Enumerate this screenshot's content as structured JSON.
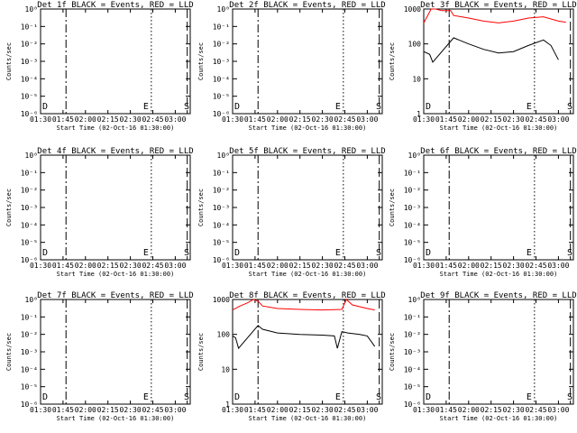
{
  "colors": {
    "events": "#000000",
    "lld": "#ff0000",
    "background": "#ffffff"
  },
  "common": {
    "xlabel": "Start Time (02-Oct-16 01:30:00)",
    "ylabel": "Counts/sec",
    "x_ticks": [
      "01:30",
      "01:45",
      "02:00",
      "02:15",
      "02:30",
      "02:45",
      "03:00"
    ],
    "x_range": [
      "01:30",
      "03:10"
    ],
    "y_ticks_small": [
      "10⁰",
      "10⁻¹",
      "10⁻²",
      "10⁻³",
      "10⁻⁴",
      "10⁻⁵",
      "10⁻⁶"
    ],
    "y_ticks_large": [
      "1",
      "10",
      "100",
      "1000"
    ],
    "marker_lines": [
      {
        "time": "01:47",
        "style": "dash-dot"
      },
      {
        "time": "02:44",
        "style": "dotted"
      },
      {
        "time": "03:08",
        "style": "long-dash"
      }
    ],
    "marker_labels": [
      "D",
      "E",
      "S"
    ]
  },
  "chart_data": [
    {
      "type": "line",
      "title": "Det 1f BLACK = Events, RED = LLD",
      "scale": "small",
      "series": []
    },
    {
      "type": "line",
      "title": "Det 2f BLACK = Events, RED = LLD",
      "scale": "small",
      "series": []
    },
    {
      "type": "line",
      "title": "Det 3f BLACK = Events, RED = LLD",
      "scale": "large",
      "ylim": [
        1,
        1000
      ],
      "series": [
        {
          "color": "red",
          "x": [
            "01:30",
            "01:35",
            "01:38",
            "01:42",
            "01:48",
            "01:50",
            "02:00",
            "02:10",
            "02:20",
            "02:30",
            "02:40",
            "02:50",
            "03:00",
            "03:05"
          ],
          "values": [
            400,
            1000,
            1000,
            900,
            900,
            650,
            550,
            450,
            400,
            450,
            550,
            600,
            450,
            420
          ]
        },
        {
          "color": "black",
          "x": [
            "01:30",
            "01:34",
            "01:36",
            "01:50",
            "02:00",
            "02:10",
            "02:20",
            "02:30",
            "02:40",
            "02:50",
            "02:55",
            "03:00"
          ],
          "values": [
            60,
            50,
            30,
            150,
            100,
            70,
            55,
            60,
            90,
            130,
            90,
            35
          ]
        }
      ]
    },
    {
      "type": "line",
      "title": "Det 4f BLACK = Events, RED = LLD",
      "scale": "small",
      "series": []
    },
    {
      "type": "line",
      "title": "Det 5f BLACK = Events, RED = LLD",
      "scale": "small",
      "series": []
    },
    {
      "type": "line",
      "title": "Det 6f BLACK = Events, RED = LLD",
      "scale": "small",
      "series": []
    },
    {
      "type": "line",
      "title": "Det 7f BLACK = Events, RED = LLD",
      "scale": "small",
      "series": []
    },
    {
      "type": "line",
      "title": "Det 8f BLACK = Events, RED = LLD",
      "scale": "large",
      "ylim": [
        1,
        1000
      ],
      "series": [
        {
          "color": "red",
          "x": [
            "01:30",
            "01:35",
            "01:40",
            "01:44",
            "01:47",
            "01:50",
            "02:00",
            "02:15",
            "02:30",
            "02:43",
            "02:46",
            "02:50",
            "03:00",
            "03:05"
          ],
          "values": [
            500,
            650,
            800,
            1000,
            900,
            650,
            550,
            520,
            500,
            520,
            1000,
            700,
            550,
            500
          ]
        },
        {
          "color": "black",
          "x": [
            "01:30",
            "01:32",
            "01:34",
            "01:47",
            "01:50",
            "02:00",
            "02:15",
            "02:30",
            "02:38",
            "02:40",
            "02:43",
            "02:47",
            "02:55",
            "03:00",
            "03:05"
          ],
          "values": [
            90,
            80,
            40,
            180,
            140,
            110,
            100,
            95,
            90,
            40,
            120,
            110,
            100,
            90,
            45
          ]
        }
      ]
    },
    {
      "type": "line",
      "title": "Det 9f BLACK = Events, RED = LLD",
      "scale": "small",
      "series": []
    }
  ]
}
